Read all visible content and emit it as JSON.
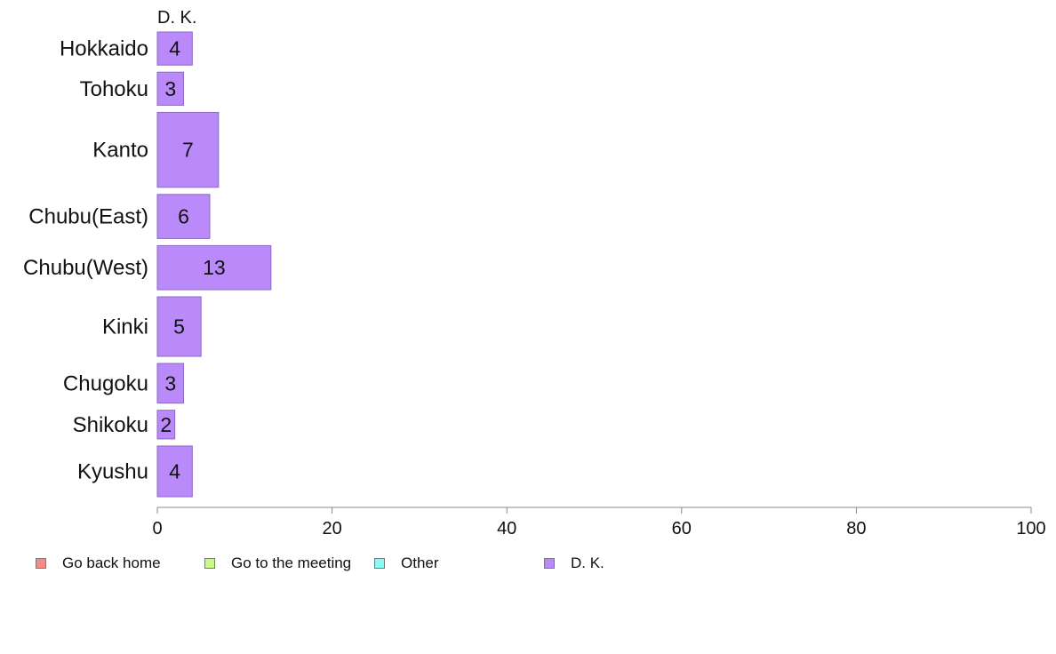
{
  "chart_data": {
    "type": "bar",
    "orientation": "horizontal",
    "header_label": "D. K.",
    "categories": [
      "Hokkaido",
      "Tohoku",
      "Kanto",
      "Chubu(East)",
      "Chubu(West)",
      "Kinki",
      "Chugoku",
      "Shikoku",
      "Kyushu"
    ],
    "series": [
      {
        "name": "Go back home",
        "values": [
          0,
          0,
          0,
          0,
          0,
          0,
          0,
          0,
          0
        ],
        "color": "#f88a8a"
      },
      {
        "name": "Go to the meeting",
        "values": [
          0,
          0,
          0,
          0,
          0,
          0,
          0,
          0,
          0
        ],
        "color": "#c8fa86"
      },
      {
        "name": "Other",
        "values": [
          0,
          0,
          0,
          0,
          0,
          0,
          0,
          0,
          0
        ],
        "color": "#8afaf7"
      },
      {
        "name": "D. K.",
        "values": [
          4,
          3,
          7,
          6,
          13,
          5,
          3,
          2,
          4
        ],
        "color": "#bb8afa"
      }
    ],
    "data_labels": [
      "4",
      "3",
      "7",
      "6",
      "13",
      "5",
      "3",
      "2",
      "4"
    ],
    "bar_weights": [
      0.75,
      0.75,
      1.7,
      1.0,
      1.0,
      1.35,
      0.9,
      0.65,
      1.15
    ],
    "xlim": [
      0,
      100
    ],
    "xticks": [
      0,
      20,
      40,
      60,
      80,
      100
    ],
    "xlabel": "",
    "ylabel": "",
    "grid": false,
    "legend_position": "bottom"
  }
}
